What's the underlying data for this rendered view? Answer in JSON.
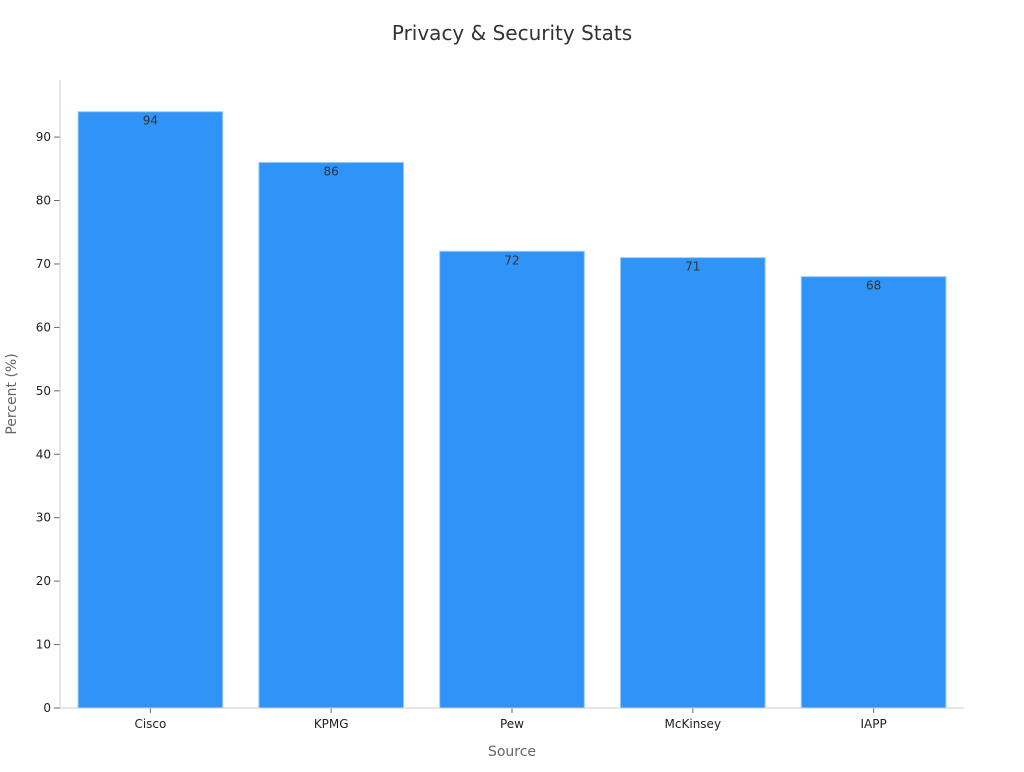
{
  "chart_data": {
    "type": "bar",
    "title": "Privacy & Security Stats",
    "xlabel": "Source",
    "ylabel": "Percent (%)",
    "categories": [
      "Cisco",
      "KPMG",
      "Pew",
      "McKinsey",
      "IAPP"
    ],
    "values": [
      94,
      86,
      72,
      71,
      68
    ],
    "ylim": [
      0,
      99
    ],
    "yticks": [
      0,
      10,
      20,
      30,
      40,
      50,
      60,
      70,
      80,
      90
    ],
    "grid": false,
    "legend": "none",
    "colors": {
      "bar": "#2f93f7",
      "bar_border": "#9ccaf7"
    }
  }
}
